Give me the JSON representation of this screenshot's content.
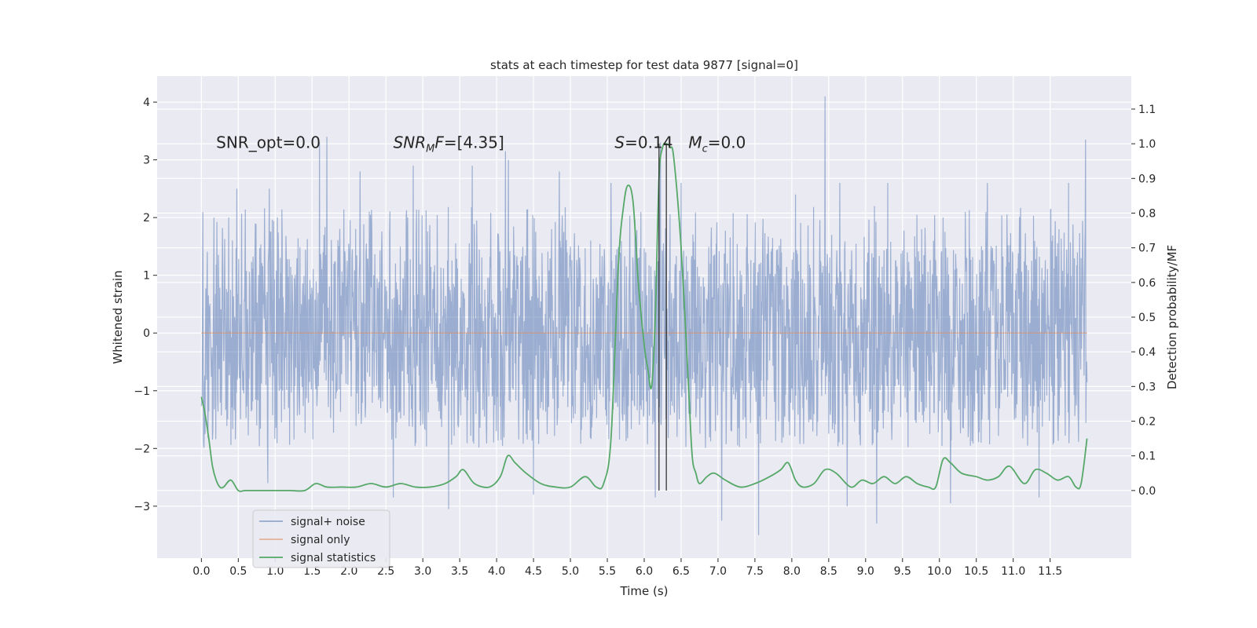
{
  "chart_data": {
    "type": "line",
    "title": "stats at each timestep for test data 9877 [signal=0]",
    "xlabel": "Time (s)",
    "ylabel": "Whitened strain",
    "y2label": "Detection probability/MF",
    "xlim": [
      -0.6,
      12.6
    ],
    "ylim": [
      -3.9,
      4.45
    ],
    "y2lim": [
      -0.195,
      1.195
    ],
    "x_ticks": [
      "0.0",
      "0.5",
      "1.0",
      "1.5",
      "2.0",
      "2.5",
      "3.0",
      "3.5",
      "4.0",
      "4.5",
      "5.0",
      "5.5",
      "6.0",
      "6.5",
      "7.0",
      "7.5",
      "8.0",
      "8.5",
      "9.0",
      "9.5",
      "10.0",
      "10.5",
      "11.0",
      "11.5"
    ],
    "y_ticks": [
      "−3",
      "−2",
      "−1",
      "0",
      "1",
      "2",
      "3",
      "4"
    ],
    "y2_ticks": [
      "0.0",
      "0.1",
      "0.2",
      "0.3",
      "0.4",
      "0.5",
      "0.6",
      "0.7",
      "0.8",
      "0.9",
      "1.0",
      "1.1"
    ],
    "grid": true,
    "legend_position": "lower-left",
    "annotations": [
      {
        "name": "snr-opt",
        "text": "SNR_opt=0.0",
        "x": 0.2,
        "y": 3.3
      },
      {
        "name": "snr-mf",
        "text": "SNR",
        "sub": "M",
        "suffix": "F=[4.35]",
        "x": 2.6,
        "y": 3.3
      },
      {
        "name": "s-stat",
        "text": "S",
        "suffix": "=0.14",
        "x": 5.6,
        "y": 3.3
      },
      {
        "name": "mc",
        "text": "M",
        "sub": "c",
        "suffix": "=0.0",
        "x": 6.6,
        "y": 3.3
      }
    ],
    "vlines": [
      {
        "x": 6.2,
        "y2_from": 0.0,
        "y2_to": 1.0
      },
      {
        "x": 6.3,
        "y2_from": 0.0,
        "y2_to": 1.0
      }
    ],
    "series": [
      {
        "name": "signal+ noise",
        "color": "#4c72b0",
        "x_range": [
          0.0,
          12.0
        ],
        "envelope": {
          "core_amplitude": 1.5,
          "typical_peak": 2.2,
          "max_peak": 4.1,
          "min_trough": -3.5
        },
        "peaks_high": [
          [
            0.17,
            2.0
          ],
          [
            0.48,
            2.5
          ],
          [
            0.92,
            2.5
          ],
          [
            1.6,
            3.3
          ],
          [
            1.7,
            3.4
          ],
          [
            2.15,
            2.8
          ],
          [
            2.87,
            2.9
          ],
          [
            3.35,
            2.6
          ],
          [
            3.67,
            2.9
          ],
          [
            4.12,
            3.15
          ],
          [
            4.16,
            3.0
          ],
          [
            4.85,
            2.8
          ],
          [
            5.55,
            2.6
          ],
          [
            6.22,
            3.3
          ],
          [
            6.5,
            2.6
          ],
          [
            8.05,
            2.4
          ],
          [
            8.45,
            4.1
          ],
          [
            8.65,
            2.6
          ],
          [
            9.3,
            2.6
          ],
          [
            10.65,
            2.6
          ],
          [
            11.75,
            2.6
          ],
          [
            11.98,
            3.35
          ]
        ],
        "peaks_low": [
          [
            0.05,
            -1.75
          ],
          [
            0.9,
            -2.6
          ],
          [
            2.6,
            -2.85
          ],
          [
            3.35,
            -3.05
          ],
          [
            4.5,
            -2.8
          ],
          [
            6.15,
            -2.85
          ],
          [
            7.05,
            -3.25
          ],
          [
            7.55,
            -3.5
          ],
          [
            8.75,
            -3.0
          ],
          [
            9.15,
            -3.3
          ],
          [
            10.15,
            -2.95
          ],
          [
            11.35,
            -2.85
          ]
        ]
      },
      {
        "name": "signal only",
        "color": "#dd8452",
        "x": [
          0.0,
          12.0
        ],
        "y": [
          0.0,
          0.0
        ]
      },
      {
        "name": "signal statistics",
        "color": "#55a868",
        "axis": "right",
        "x": [
          0.0,
          0.05,
          0.1,
          0.15,
          0.2,
          0.25,
          0.3,
          0.4,
          0.5,
          0.6,
          0.8,
          1.0,
          1.2,
          1.4,
          1.55,
          1.7,
          1.9,
          2.1,
          2.3,
          2.5,
          2.7,
          2.9,
          3.1,
          3.3,
          3.45,
          3.55,
          3.7,
          3.9,
          4.05,
          4.15,
          4.25,
          4.4,
          4.6,
          4.8,
          5.0,
          5.2,
          5.35,
          5.45,
          5.55,
          5.65,
          5.72,
          5.78,
          5.85,
          5.92,
          6.0,
          6.05,
          6.1,
          6.15,
          6.2,
          6.25,
          6.3,
          6.35,
          6.4,
          6.5,
          6.6,
          6.65,
          6.7,
          6.75,
          6.85,
          6.95,
          7.1,
          7.3,
          7.5,
          7.7,
          7.85,
          7.95,
          8.05,
          8.15,
          8.3,
          8.45,
          8.6,
          8.8,
          8.95,
          9.1,
          9.25,
          9.4,
          9.55,
          9.7,
          9.85,
          9.95,
          10.05,
          10.15,
          10.3,
          10.5,
          10.65,
          10.8,
          10.95,
          11.15,
          11.3,
          11.45,
          11.6,
          11.75,
          11.85,
          11.92,
          12.0
        ],
        "y": [
          0.27,
          0.22,
          0.15,
          0.07,
          0.03,
          0.01,
          0.01,
          0.03,
          0.0,
          0.0,
          0.0,
          0.0,
          0.0,
          0.0,
          0.02,
          0.01,
          0.01,
          0.01,
          0.02,
          0.01,
          0.02,
          0.01,
          0.01,
          0.02,
          0.04,
          0.06,
          0.02,
          0.01,
          0.04,
          0.1,
          0.08,
          0.05,
          0.02,
          0.01,
          0.01,
          0.04,
          0.01,
          0.02,
          0.15,
          0.65,
          0.82,
          0.88,
          0.83,
          0.6,
          0.42,
          0.35,
          0.3,
          0.5,
          0.9,
          0.99,
          1.0,
          0.99,
          0.96,
          0.7,
          0.3,
          0.1,
          0.05,
          0.02,
          0.04,
          0.05,
          0.03,
          0.01,
          0.02,
          0.04,
          0.06,
          0.08,
          0.03,
          0.01,
          0.02,
          0.06,
          0.05,
          0.01,
          0.03,
          0.02,
          0.04,
          0.02,
          0.04,
          0.02,
          0.01,
          0.01,
          0.09,
          0.08,
          0.05,
          0.04,
          0.03,
          0.04,
          0.07,
          0.02,
          0.06,
          0.05,
          0.03,
          0.04,
          0.01,
          0.02,
          0.15
        ]
      }
    ]
  }
}
